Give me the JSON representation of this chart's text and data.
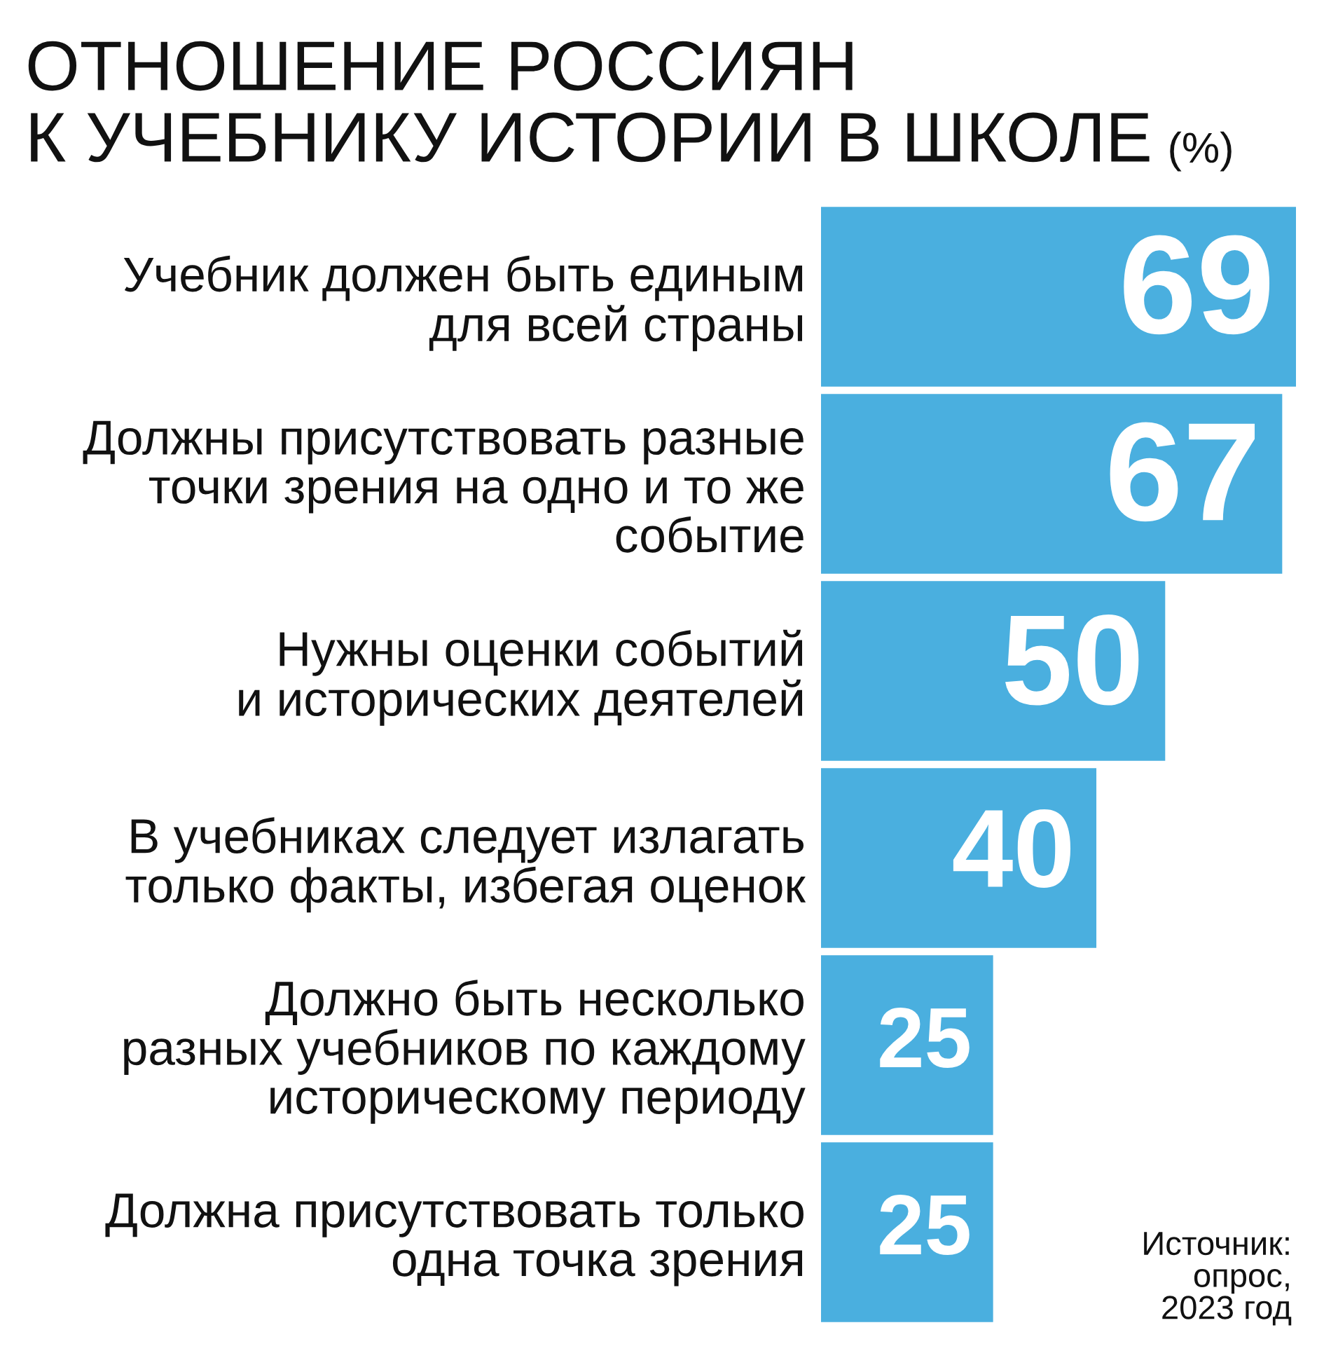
{
  "chart_data": {
    "type": "bar",
    "orientation": "horizontal",
    "title": "ОТНОШЕНИЕ РОССИЯН\nК УЧЕБНИКУ ИСТОРИИ В ШКОЛЕ",
    "subtitle": "(%)",
    "categories": [
      "Учебник должен быть единым\nдля всей страны",
      "Должны присутствовать разные\nточки зрения на одно и то же\nсобытие",
      "Нужны оценки событий\nи исторических деятелей",
      "В учебниках следует излагать\nтолько факты, избегая оценок",
      "Должно быть несколько\nразных учебников по каждому\nисторическому периоду",
      "Должна присутствовать только\nодна точка зрения"
    ],
    "values": [
      69,
      67,
      50,
      40,
      25,
      25
    ],
    "color": "#4aafdf",
    "data_labels": true,
    "xlim": [
      0,
      69
    ],
    "tick_labels": "y",
    "annotations": [
      "Источник:\nопрос,\n2023 год"
    ]
  }
}
